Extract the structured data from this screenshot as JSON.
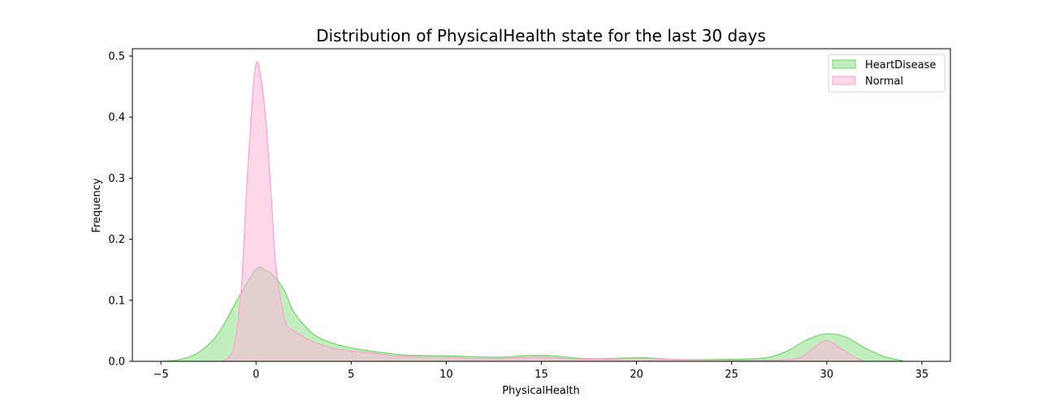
{
  "chart_data": {
    "type": "area",
    "title": "Distribution of PhysicalHealth state for the last 30 days",
    "xlabel": "PhysicalHealth",
    "ylabel": "Frequency",
    "xlim": [
      -6.5,
      36.5
    ],
    "ylim": [
      0,
      0.512
    ],
    "xticks": [
      -5,
      0,
      5,
      10,
      15,
      20,
      25,
      30,
      35
    ],
    "yticks": [
      0.0,
      0.1,
      0.2,
      0.3,
      0.4,
      0.5
    ],
    "xtick_labels": [
      "−5",
      "0",
      "5",
      "10",
      "15",
      "20",
      "25",
      "30",
      "35"
    ],
    "ytick_labels": [
      "0.0",
      "0.1",
      "0.2",
      "0.3",
      "0.4",
      "0.5"
    ],
    "grid": false,
    "legend_position": "top-right",
    "series": [
      {
        "name": "HeartDisease",
        "fill": "#90e08a",
        "stroke": "#6fd66a",
        "fill_opacity": 0.55,
        "x": [
          -5.0,
          -4.0,
          -3.0,
          -2.0,
          -1.0,
          0.0,
          0.5,
          1.0,
          1.5,
          2.0,
          3.0,
          4.0,
          5.0,
          6.0,
          7.0,
          8.0,
          10.0,
          12.0,
          13.0,
          15.0,
          17.0,
          18.0,
          20.0,
          21.0,
          22.0,
          24.0,
          26.0,
          27.0,
          28.0,
          29.0,
          30.0,
          31.0,
          32.0,
          33.0,
          34.0
        ],
        "y": [
          0.0,
          0.003,
          0.015,
          0.045,
          0.1,
          0.151,
          0.149,
          0.138,
          0.115,
          0.08,
          0.045,
          0.03,
          0.022,
          0.017,
          0.013,
          0.01,
          0.009,
          0.007,
          0.007,
          0.01,
          0.005,
          0.004,
          0.006,
          0.005,
          0.003,
          0.003,
          0.004,
          0.007,
          0.018,
          0.036,
          0.045,
          0.04,
          0.022,
          0.008,
          0.001
        ]
      },
      {
        "name": "Normal",
        "fill": "#ffb6d9",
        "stroke": "#ff9fcf",
        "fill_opacity": 0.55,
        "x": [
          -1.8,
          -1.2,
          -0.8,
          -0.5,
          -0.2,
          0.0,
          0.2,
          0.5,
          0.8,
          1.0,
          1.3,
          1.6,
          2.0,
          2.5,
          3.0,
          4.0,
          5.0,
          6.0,
          7.0,
          8.0,
          10.0,
          12.0,
          14.0,
          15.0,
          16.0,
          18.0,
          20.0,
          22.0,
          25.0,
          27.0,
          28.5,
          29.3,
          30.0,
          30.7,
          31.5,
          32.0
        ],
        "y": [
          0.0,
          0.02,
          0.11,
          0.28,
          0.43,
          0.487,
          0.475,
          0.4,
          0.27,
          0.17,
          0.1,
          0.06,
          0.05,
          0.04,
          0.032,
          0.022,
          0.017,
          0.014,
          0.01,
          0.008,
          0.007,
          0.004,
          0.006,
          0.007,
          0.005,
          0.003,
          0.005,
          0.003,
          0.002,
          0.002,
          0.005,
          0.022,
          0.034,
          0.022,
          0.006,
          0.0
        ]
      }
    ]
  }
}
